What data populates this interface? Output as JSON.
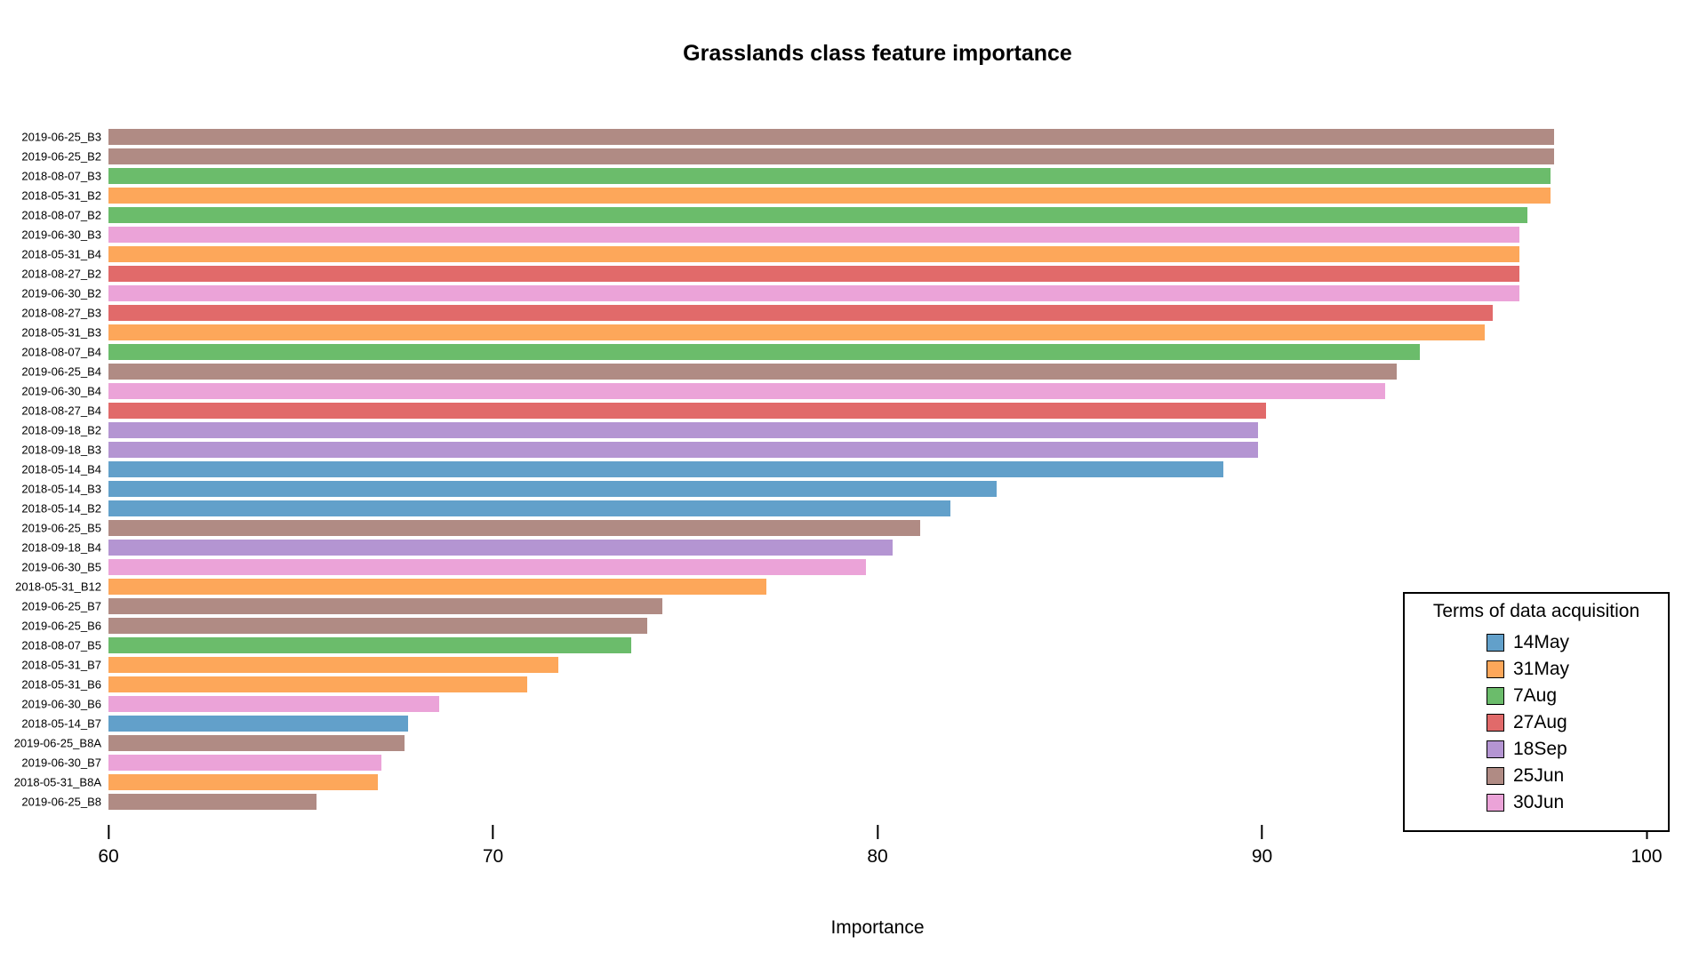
{
  "title": "Grasslands class feature importance",
  "xlabel": "Importance",
  "legend": {
    "title": "Terms of data acquisition",
    "entries": [
      {
        "label": "14May",
        "color": "#62A0CA"
      },
      {
        "label": "31May",
        "color": "#FDA75A"
      },
      {
        "label": "7Aug",
        "color": "#6BBC6B"
      },
      {
        "label": "27Aug",
        "color": "#E16A6A"
      },
      {
        "label": "18Sep",
        "color": "#B495D2"
      },
      {
        "label": "25Jun",
        "color": "#B08B84"
      },
      {
        "label": "30Jun",
        "color": "#EBA3D8"
      }
    ]
  },
  "chart_data": {
    "type": "bar",
    "orientation": "horizontal",
    "title": "Grasslands class feature importance",
    "xlabel": "Importance",
    "ylabel": "",
    "xlim": [
      60,
      100
    ],
    "xticks": [
      60,
      70,
      80,
      90,
      100
    ],
    "grid": false,
    "legend_position": "lower right",
    "legend_title": "Terms of data acquisition",
    "groups": {
      "14May": "#62A0CA",
      "31May": "#FDA75A",
      "7Aug": "#6BBC6B",
      "27Aug": "#E16A6A",
      "18Sep": "#B495D2",
      "25Jun": "#B08B84",
      "30Jun": "#EBA3D8"
    },
    "bars": [
      {
        "label": "2019-06-25_B3",
        "value": 97.6,
        "group": "25Jun"
      },
      {
        "label": "2019-06-25_B2",
        "value": 97.6,
        "group": "25Jun"
      },
      {
        "label": "2018-08-07_B3",
        "value": 97.5,
        "group": "7Aug"
      },
      {
        "label": "2018-05-31_B2",
        "value": 97.5,
        "group": "31May"
      },
      {
        "label": "2018-08-07_B2",
        "value": 96.9,
        "group": "7Aug"
      },
      {
        "label": "2019-06-30_B3",
        "value": 96.7,
        "group": "30Jun"
      },
      {
        "label": "2018-05-31_B4",
        "value": 96.7,
        "group": "31May"
      },
      {
        "label": "2018-08-27_B2",
        "value": 96.7,
        "group": "27Aug"
      },
      {
        "label": "2019-06-30_B2",
        "value": 96.7,
        "group": "30Jun"
      },
      {
        "label": "2018-08-27_B3",
        "value": 96.0,
        "group": "27Aug"
      },
      {
        "label": "2018-05-31_B3",
        "value": 95.8,
        "group": "31May"
      },
      {
        "label": "2018-08-07_B4",
        "value": 94.1,
        "group": "7Aug"
      },
      {
        "label": "2019-06-25_B4",
        "value": 93.5,
        "group": "25Jun"
      },
      {
        "label": "2019-06-30_B4",
        "value": 93.2,
        "group": "30Jun"
      },
      {
        "label": "2018-08-27_B4",
        "value": 90.1,
        "group": "27Aug"
      },
      {
        "label": "2018-09-18_B2",
        "value": 89.9,
        "group": "18Sep"
      },
      {
        "label": "2018-09-18_B3",
        "value": 89.9,
        "group": "18Sep"
      },
      {
        "label": "2018-05-14_B4",
        "value": 89.0,
        "group": "14May"
      },
      {
        "label": "2018-05-14_B3",
        "value": 83.1,
        "group": "14May"
      },
      {
        "label": "2018-05-14_B2",
        "value": 81.9,
        "group": "14May"
      },
      {
        "label": "2019-06-25_B5",
        "value": 81.1,
        "group": "25Jun"
      },
      {
        "label": "2018-09-18_B4",
        "value": 80.4,
        "group": "18Sep"
      },
      {
        "label": "2019-06-30_B5",
        "value": 79.7,
        "group": "30Jun"
      },
      {
        "label": "2018-05-31_B12",
        "value": 77.1,
        "group": "31May"
      },
      {
        "label": "2019-06-25_B7",
        "value": 74.4,
        "group": "25Jun"
      },
      {
        "label": "2019-06-25_B6",
        "value": 74.0,
        "group": "25Jun"
      },
      {
        "label": "2018-08-07_B5",
        "value": 73.6,
        "group": "7Aug"
      },
      {
        "label": "2018-05-31_B7",
        "value": 71.7,
        "group": "31May"
      },
      {
        "label": "2018-05-31_B6",
        "value": 70.9,
        "group": "31May"
      },
      {
        "label": "2019-06-30_B6",
        "value": 68.6,
        "group": "30Jun"
      },
      {
        "label": "2018-05-14_B7",
        "value": 67.8,
        "group": "14May"
      },
      {
        "label": "2019-06-25_B8A",
        "value": 67.7,
        "group": "25Jun"
      },
      {
        "label": "2019-06-30_B7",
        "value": 67.1,
        "group": "30Jun"
      },
      {
        "label": "2018-05-31_B8A",
        "value": 67.0,
        "group": "31May"
      },
      {
        "label": "2019-06-25_B8",
        "value": 65.4,
        "group": "25Jun"
      }
    ]
  }
}
